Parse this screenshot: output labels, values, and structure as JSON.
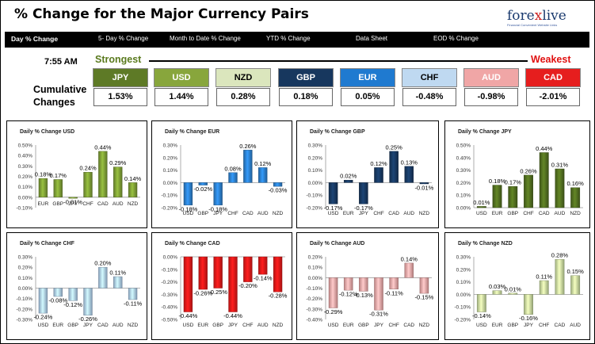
{
  "title": "% Change for the Major Currency Pairs",
  "logo": {
    "name_a": "fore",
    "name_b": "x",
    "name_c": "live",
    "tagline": "Financial Convenient Website Links"
  },
  "nav": [
    {
      "label": "Day % Change",
      "active": true
    },
    {
      "label": "5- Day % Change",
      "active": false
    },
    {
      "label": "Month to Date % Change",
      "active": false
    },
    {
      "label": "YTD % Change",
      "active": false
    },
    {
      "label": "Data Sheet",
      "active": false
    },
    {
      "label": "EOD % Change",
      "active": false
    }
  ],
  "time": "7:55 AM",
  "strongest_label": "Strongest",
  "weakest_label": "Weakest",
  "cumulative_label": "Cumulative Changes",
  "currencies": [
    {
      "code": "JPY",
      "value": "1.53%",
      "bg": "#5e7a26",
      "fg": "#ffffff"
    },
    {
      "code": "USD",
      "value": "1.44%",
      "bg": "#88a63c",
      "fg": "#ffffff"
    },
    {
      "code": "NZD",
      "value": "0.28%",
      "bg": "#dbe6bd",
      "fg": "#000000"
    },
    {
      "code": "GBP",
      "value": "0.18%",
      "bg": "#17375e",
      "fg": "#ffffff"
    },
    {
      "code": "EUR",
      "value": "0.05%",
      "bg": "#1f7ad0",
      "fg": "#ffffff"
    },
    {
      "code": "CHF",
      "value": "-0.48%",
      "bg": "#bfd9f1",
      "fg": "#000000"
    },
    {
      "code": "AUD",
      "value": "-0.98%",
      "bg": "#f0a6a6",
      "fg": "#ffffff"
    },
    {
      "code": "CAD",
      "value": "-2.01%",
      "bg": "#e61e1e",
      "fg": "#ffffff"
    }
  ],
  "chart_data": [
    {
      "type": "bar",
      "title": "Daily % Change USD",
      "categories": [
        "EUR",
        "GBP",
        "JPY",
        "CHF",
        "CAD",
        "AUD",
        "NZD"
      ],
      "values": [
        0.18,
        0.17,
        -0.01,
        0.24,
        0.44,
        0.29,
        0.14
      ],
      "value_labels": [
        "0.18%",
        "0.17%",
        "-0.01%",
        "0.24%",
        "0.44%",
        "0.29%",
        "0.14%"
      ],
      "yticks": [
        "0.50%",
        "0.40%",
        "0.30%",
        "0.20%",
        "0.10%",
        "0.00%",
        "-0.10%"
      ],
      "ylim": [
        -0.1,
        0.5
      ],
      "xaxis_at": "zero",
      "color": "#7a9a34"
    },
    {
      "type": "bar",
      "title": "Daily % Change EUR",
      "categories": [
        "USD",
        "GBP",
        "JPY",
        "CHF",
        "CAD",
        "AUD",
        "NZD"
      ],
      "values": [
        -0.18,
        -0.02,
        -0.18,
        0.08,
        0.26,
        0.12,
        -0.03
      ],
      "value_labels": [
        "-0.18%",
        "-0.02%",
        "-0.18%",
        "0.08%",
        "0.26%",
        "0.12%",
        "-0.03%"
      ],
      "yticks": [
        "0.30%",
        "0.20%",
        "0.10%",
        "0.00%",
        "-0.10%",
        "-0.20%"
      ],
      "ylim": [
        -0.2,
        0.3
      ],
      "xaxis_at": "bottom",
      "color": "#2a7cc8"
    },
    {
      "type": "bar",
      "title": "Daily % Change GBP",
      "categories": [
        "USD",
        "EUR",
        "JPY",
        "CHF",
        "CAD",
        "AUD",
        "NZD"
      ],
      "values": [
        -0.17,
        0.02,
        -0.17,
        0.12,
        0.25,
        0.13,
        -0.01
      ],
      "value_labels": [
        "-0.17%",
        "0.02%",
        "-0.17%",
        "0.12%",
        "0.25%",
        "0.13%",
        "-0.01%"
      ],
      "yticks": [
        "0.30%",
        "0.20%",
        "0.10%",
        "0.00%",
        "-0.10%",
        "-0.20%"
      ],
      "ylim": [
        -0.2,
        0.3
      ],
      "xaxis_at": "bottom",
      "color": "#17375e"
    },
    {
      "type": "bar",
      "title": "Daily % Change JPY",
      "categories": [
        "USD",
        "EUR",
        "GBP",
        "CHF",
        "CAD",
        "AUD",
        "NZD"
      ],
      "values": [
        0.01,
        0.18,
        0.17,
        0.26,
        0.44,
        0.31,
        0.16
      ],
      "value_labels": [
        "0.01%",
        "0.18%",
        "0.17%",
        "0.26%",
        "0.44%",
        "0.31%",
        "0.16%"
      ],
      "yticks": [
        "0.50%",
        "0.40%",
        "0.30%",
        "0.20%",
        "0.10%",
        "0.00%"
      ],
      "ylim": [
        0,
        0.5
      ],
      "xaxis_at": "bottom",
      "color": "#4f6b1e"
    },
    {
      "type": "bar",
      "title": "Daily % Change CHF",
      "categories": [
        "USD",
        "EUR",
        "GBP",
        "JPY",
        "CAD",
        "AUD",
        "NZD"
      ],
      "values": [
        -0.24,
        -0.08,
        -0.12,
        -0.26,
        0.2,
        0.11,
        -0.11
      ],
      "value_labels": [
        "-0.24%",
        "-0.08%",
        "-0.12%",
        "-0.26%",
        "0.20%",
        "0.11%",
        "-0.11%"
      ],
      "yticks": [
        "0.30%",
        "0.20%",
        "0.10%",
        "0.00%",
        "-0.10%",
        "-0.20%",
        "-0.30%"
      ],
      "ylim": [
        -0.3,
        0.3
      ],
      "xaxis_at": "bottom",
      "color": "#a9c8ea"
    },
    {
      "type": "bar",
      "title": "Daily % Change CAD",
      "categories": [
        "USD",
        "EUR",
        "GBP",
        "JPY",
        "CHF",
        "AUD",
        "NZD"
      ],
      "values": [
        -0.44,
        -0.26,
        -0.25,
        -0.44,
        -0.2,
        -0.14,
        -0.28
      ],
      "value_labels": [
        "-0.44%",
        "-0.26%",
        "-0.25%",
        "-0.44%",
        "-0.20%",
        "-0.14%",
        "-0.28%"
      ],
      "yticks": [
        "0.00%",
        "-0.10%",
        "-0.20%",
        "-0.30%",
        "-0.40%",
        "-0.50%"
      ],
      "ylim": [
        -0.5,
        0
      ],
      "xaxis_at": "bottom",
      "color": "#e01818"
    },
    {
      "type": "bar",
      "title": "Daily % Change AUD",
      "categories": [
        "USD",
        "EUR",
        "GBP",
        "JPY",
        "CHF",
        "CAD",
        "NZD"
      ],
      "values": [
        -0.29,
        -0.12,
        -0.13,
        -0.31,
        -0.11,
        0.14,
        -0.15
      ],
      "value_labels": [
        "-0.29%",
        "-0.12%",
        "-0.13%",
        "-0.31%",
        "-0.11%",
        "0.14%",
        "-0.15%"
      ],
      "yticks": [
        "0.20%",
        "0.10%",
        "0.00%",
        "-0.10%",
        "-0.20%",
        "-0.30%",
        "-0.40%"
      ],
      "ylim": [
        -0.4,
        0.2
      ],
      "xaxis_at": "bottom",
      "color": "#eaa2a2"
    },
    {
      "type": "bar",
      "title": "Daily % Change NZD",
      "categories": [
        "USD",
        "EUR",
        "GBP",
        "JPY",
        "CHF",
        "CAD",
        "AUD"
      ],
      "values": [
        -0.14,
        0.03,
        0.01,
        -0.16,
        0.11,
        0.28,
        0.15
      ],
      "value_labels": [
        "-0.14%",
        "0.03%",
        "0.01%",
        "-0.16%",
        "0.11%",
        "0.28%",
        "0.15%"
      ],
      "yticks": [
        "0.30%",
        "0.20%",
        "0.10%",
        "0.00%",
        "-0.10%",
        "-0.20%"
      ],
      "ylim": [
        -0.2,
        0.3
      ],
      "xaxis_at": "bottom",
      "color": "#c4d89a"
    }
  ]
}
